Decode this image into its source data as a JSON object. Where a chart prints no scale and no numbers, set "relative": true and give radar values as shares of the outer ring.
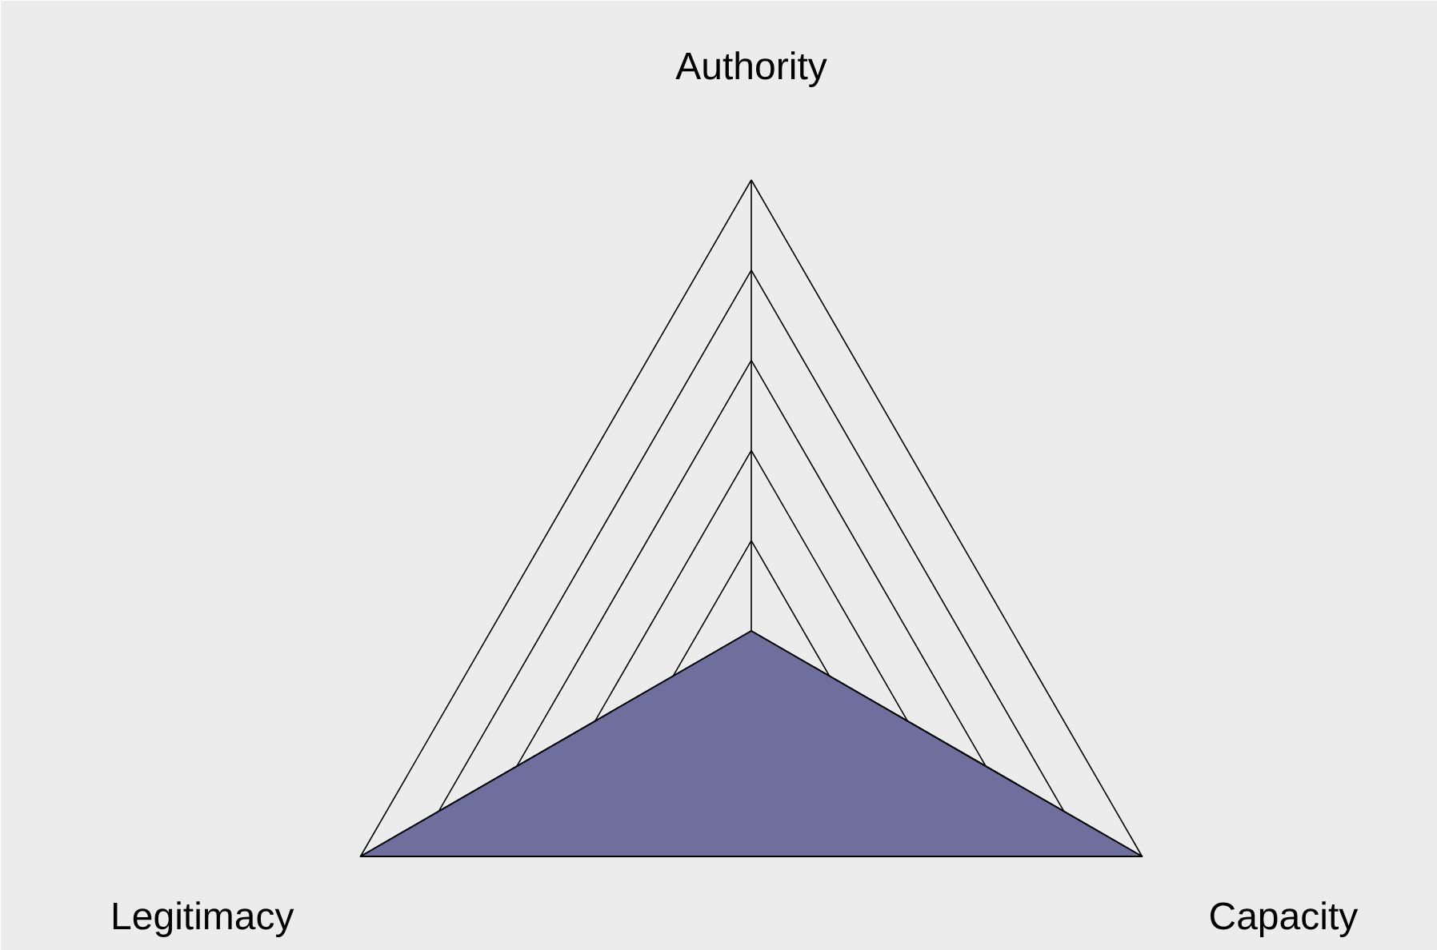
{
  "chart_data": {
    "type": "radar",
    "relative": true,
    "categories": [
      "Authority",
      "Capacity",
      "Legitimacy"
    ],
    "series": [
      {
        "color": "#6f6f9e",
        "values": [
          0,
          1,
          1
        ]
      }
    ]
  }
}
